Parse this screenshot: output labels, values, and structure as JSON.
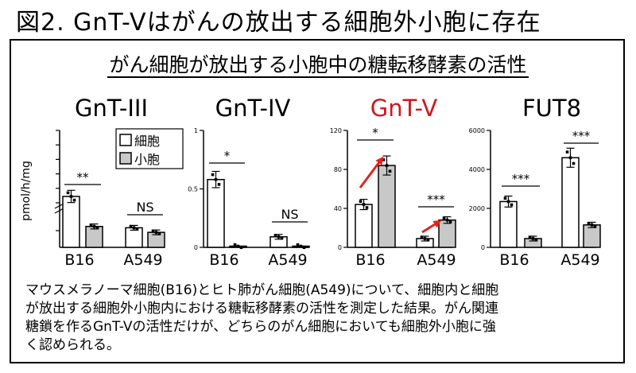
{
  "title": "図2. GnT-Vはがんの放出する細胞外小胞に存在",
  "subtitle": "がん細胞が放出する小胞中の糖転移酵素の活性",
  "colors": {
    "accent": "#d0171d",
    "arrow": "#e2231a",
    "bar_cell": "#ffffff",
    "bar_vesicle": "#c8c8c8"
  },
  "legend": {
    "cell": "細胞",
    "vesicle": "小胞"
  },
  "ylabel": "pmol/h/mg",
  "caption": [
    "マウスメラノーマ細胞(B16)とヒト肺がん細胞(A549)について、細胞内と細胞",
    "が放出する細胞外小胞内における糖転移酵素の活性を測定した結果。がん関連",
    "糖鎖を作るGnT-Vの活性だけが、どちらのがん細胞においても細胞外小胞に強",
    "く認められる。"
  ],
  "chart_data": [
    {
      "type": "bar",
      "title": "GnT-III",
      "categories": [
        "B16",
        "A549"
      ],
      "series": [
        {
          "name": "細胞",
          "values": [
            6.2,
            0.3
          ]
        },
        {
          "name": "小胞",
          "values": [
            0.32,
            0.23
          ]
        }
      ],
      "ylabel": "pmol/h/mg",
      "yticks_upper": [
        "",
        "",
        "",
        "",
        "",
        ""
      ],
      "broken_axis": true,
      "significance": [
        "**",
        "NS"
      ]
    },
    {
      "type": "bar",
      "title": "GnT-IV",
      "categories": [
        "B16",
        "A549"
      ],
      "series": [
        {
          "name": "細胞",
          "values": [
            0.58,
            0.09
          ]
        },
        {
          "name": "小胞",
          "values": [
            0.005,
            0.005
          ]
        }
      ],
      "ylim": [
        0,
        1
      ],
      "yticks": [
        "1",
        "0.5",
        "0"
      ],
      "significance": [
        "*",
        "NS"
      ]
    },
    {
      "type": "bar",
      "title": "GnT-V",
      "categories": [
        "B16",
        "A549"
      ],
      "series": [
        {
          "name": "細胞",
          "values": [
            44,
            9
          ]
        },
        {
          "name": "小胞",
          "values": [
            84,
            28
          ]
        }
      ],
      "ylim": [
        0,
        120
      ],
      "yticks": [
        "120",
        "80",
        "40",
        "0"
      ],
      "significance": [
        "*",
        "***"
      ]
    },
    {
      "type": "bar",
      "title": "FUT8",
      "categories": [
        "B16",
        "A549"
      ],
      "series": [
        {
          "name": "細胞",
          "values": [
            2350,
            4600
          ]
        },
        {
          "name": "小胞",
          "values": [
            450,
            1150
          ]
        }
      ],
      "ylim": [
        0,
        6000
      ],
      "yticks": [
        "6000",
        "4000",
        "2000",
        "0"
      ],
      "significance": [
        "***",
        "***"
      ]
    }
  ]
}
